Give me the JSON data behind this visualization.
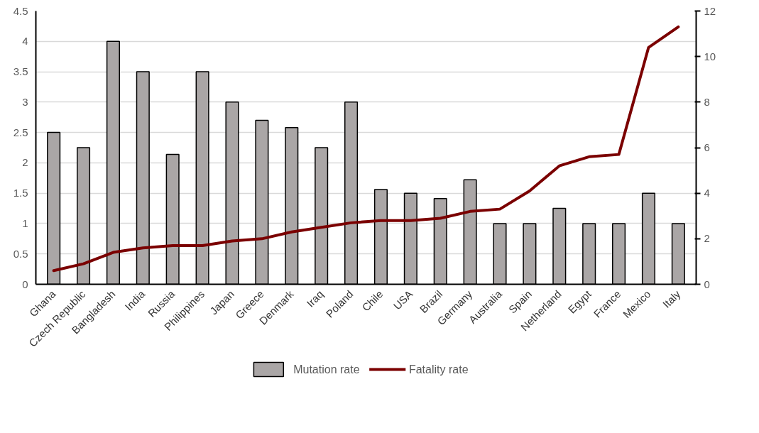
{
  "chart_data": {
    "type": "bar",
    "categories": [
      "Ghana",
      "Czech Republic",
      "Bangladesh",
      "India",
      "Russia",
      "Philippines",
      "Japan",
      "Greece",
      "Denmark",
      "Iraq",
      "Poland",
      "Chile",
      "USA",
      "Brazil",
      "Germany",
      "Australia",
      "Spain",
      "Netherland",
      "Egypt",
      "France",
      "Mexico",
      "Italy"
    ],
    "series": [
      {
        "name": "Mutation rate",
        "type": "bar",
        "color": "#aaa6a6",
        "values": [
          2.5,
          2.25,
          4,
          3.5,
          2.14,
          3.5,
          3,
          2.7,
          2.58,
          2.25,
          3,
          1.56,
          1.5,
          1.41,
          1.72,
          1,
          1,
          1.25,
          1,
          1,
          1.5,
          1
        ]
      },
      {
        "name": "Fatality rate",
        "type": "line",
        "axis": "y2",
        "color": "#7b0000",
        "values": [
          0.6,
          0.9,
          1.4,
          1.6,
          1.7,
          1.7,
          1.9,
          2.0,
          2.3,
          2.5,
          2.7,
          2.8,
          2.8,
          2.9,
          3.2,
          3.3,
          4.1,
          5.2,
          5.6,
          5.7,
          10.4,
          11.3
        ]
      }
    ],
    "ylim": [
      0,
      4.5
    ],
    "yticks": [
      0,
      0.5,
      1,
      1.5,
      2,
      2.5,
      3,
      3.5,
      4,
      4.5
    ],
    "y2lim": [
      0,
      12
    ],
    "y2ticks": [
      0,
      2,
      4,
      6,
      8,
      10,
      12
    ],
    "grid": "y",
    "legend": "bottom",
    "marker": "none",
    "line_style": "solid"
  }
}
